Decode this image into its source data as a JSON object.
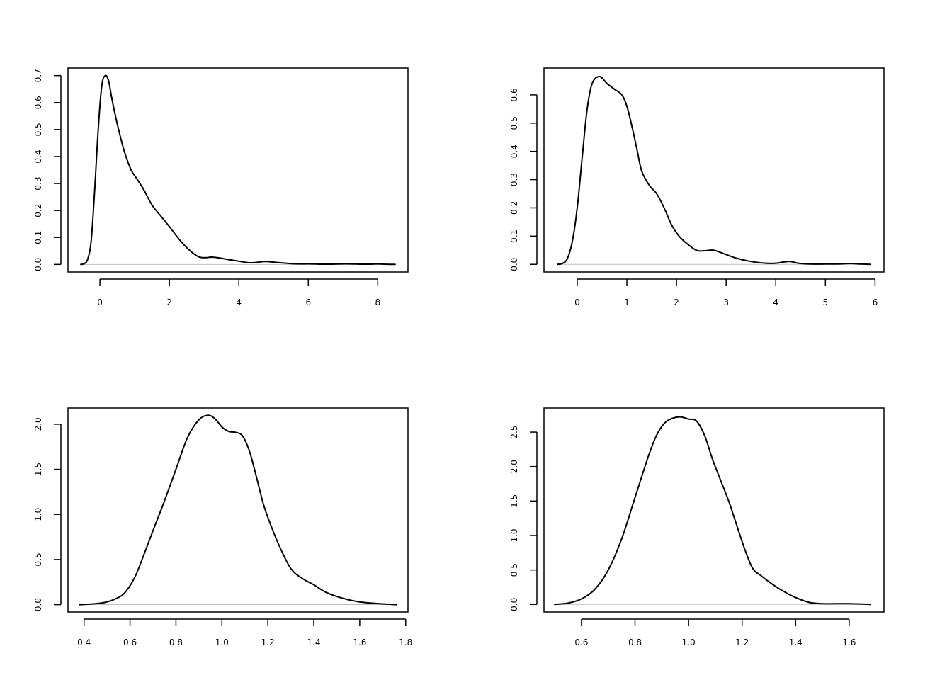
{
  "chart_data": [
    {
      "type": "line",
      "title": "",
      "xlabel": "",
      "ylabel": "",
      "xlim": [
        -0.92,
        8.87
      ],
      "ylim": [
        -0.028,
        0.728
      ],
      "xticks": [
        0,
        2,
        4,
        6,
        8
      ],
      "yticks": [
        0.0,
        0.1,
        0.2,
        0.3,
        0.4,
        0.5,
        0.6,
        0.7
      ],
      "xtick_labels": [
        "0",
        "2",
        "4",
        "6",
        "8"
      ],
      "ytick_labels": [
        "0.0",
        "0.1",
        "0.2",
        "0.3",
        "0.4",
        "0.5",
        "0.6",
        "0.7"
      ],
      "baseline": 0,
      "grid": false,
      "legend": "none",
      "series": [
        {
          "x": [
            -0.55,
            -0.45,
            -0.35,
            -0.25,
            -0.15,
            -0.05,
            0.05,
            0.15,
            0.25,
            0.35,
            0.5,
            0.7,
            0.9,
            1.05,
            1.25,
            1.5,
            1.75,
            2.0,
            2.3,
            2.6,
            2.85,
            3.05,
            3.2,
            3.45,
            3.7,
            4.0,
            4.3,
            4.55,
            4.75,
            4.95,
            5.2,
            5.5,
            5.8,
            6.1,
            6.4,
            6.7,
            6.95,
            7.2,
            7.5,
            7.8,
            8.0,
            8.2,
            8.5
          ],
          "y": [
            0.0,
            0.003,
            0.02,
            0.09,
            0.28,
            0.5,
            0.66,
            0.7,
            0.68,
            0.61,
            0.52,
            0.42,
            0.35,
            0.32,
            0.28,
            0.22,
            0.18,
            0.14,
            0.09,
            0.05,
            0.028,
            0.025,
            0.027,
            0.024,
            0.018,
            0.012,
            0.006,
            0.008,
            0.011,
            0.009,
            0.006,
            0.003,
            0.002,
            0.002,
            0.001,
            0.001,
            0.002,
            0.002,
            0.001,
            0.001,
            0.002,
            0.001,
            0.0
          ]
        }
      ]
    },
    {
      "type": "line",
      "title": "",
      "xlabel": "",
      "ylabel": "",
      "xlim": [
        -0.67,
        6.18
      ],
      "ylim": [
        -0.027,
        0.695
      ],
      "xticks": [
        0,
        1,
        2,
        3,
        4,
        5,
        6
      ],
      "yticks": [
        0.0,
        0.1,
        0.2,
        0.3,
        0.4,
        0.5,
        0.6
      ],
      "xtick_labels": [
        "0",
        "1",
        "2",
        "3",
        "4",
        "5",
        "6"
      ],
      "ytick_labels": [
        "0.0",
        "0.1",
        "0.2",
        "0.3",
        "0.4",
        "0.5",
        "0.6"
      ],
      "baseline": 0,
      "grid": false,
      "legend": "none",
      "series": [
        {
          "x": [
            -0.4,
            -0.3,
            -0.2,
            -0.1,
            0.0,
            0.1,
            0.2,
            0.3,
            0.45,
            0.6,
            0.75,
            0.9,
            1.0,
            1.1,
            1.2,
            1.3,
            1.45,
            1.6,
            1.75,
            1.9,
            2.05,
            2.2,
            2.4,
            2.55,
            2.75,
            2.95,
            3.2,
            3.5,
            3.8,
            4.0,
            4.15,
            4.3,
            4.45,
            4.7,
            5.0,
            5.3,
            5.5,
            5.7,
            5.9
          ],
          "y": [
            0.0,
            0.003,
            0.02,
            0.08,
            0.2,
            0.38,
            0.55,
            0.64,
            0.665,
            0.64,
            0.62,
            0.6,
            0.56,
            0.49,
            0.41,
            0.33,
            0.28,
            0.25,
            0.2,
            0.14,
            0.1,
            0.075,
            0.05,
            0.048,
            0.05,
            0.038,
            0.022,
            0.01,
            0.004,
            0.004,
            0.008,
            0.01,
            0.004,
            0.001,
            0.001,
            0.0015,
            0.003,
            0.001,
            0.0
          ]
        }
      ]
    },
    {
      "type": "line",
      "title": "",
      "xlabel": "",
      "ylabel": "",
      "xlim": [
        0.33,
        1.81
      ],
      "ylim": [
        -0.082,
        2.18
      ],
      "xticks": [
        0.4,
        0.6,
        0.8,
        1.0,
        1.2,
        1.4,
        1.6,
        1.8
      ],
      "yticks": [
        0.0,
        0.5,
        1.0,
        1.5,
        2.0
      ],
      "xtick_labels": [
        "0.4",
        "0.6",
        "0.8",
        "1.0",
        "1.2",
        "1.4",
        "1.6",
        "1.8"
      ],
      "ytick_labels": [
        "0.0",
        "0.5",
        "1.0",
        "1.5",
        "2.0"
      ],
      "baseline": 0,
      "grid": false,
      "legend": "none",
      "series": [
        {
          "x": [
            0.38,
            0.45,
            0.5,
            0.55,
            0.58,
            0.62,
            0.66,
            0.7,
            0.75,
            0.8,
            0.85,
            0.9,
            0.94,
            0.97,
            1.0,
            1.03,
            1.06,
            1.09,
            1.12,
            1.15,
            1.18,
            1.21,
            1.25,
            1.3,
            1.35,
            1.4,
            1.45,
            1.5,
            1.55,
            1.6,
            1.66,
            1.72,
            1.76
          ],
          "y": [
            0.0,
            0.01,
            0.03,
            0.08,
            0.14,
            0.3,
            0.55,
            0.82,
            1.15,
            1.5,
            1.85,
            2.05,
            2.1,
            2.06,
            1.97,
            1.92,
            1.91,
            1.87,
            1.7,
            1.42,
            1.12,
            0.9,
            0.65,
            0.4,
            0.29,
            0.22,
            0.14,
            0.09,
            0.055,
            0.03,
            0.015,
            0.005,
            0.0
          ]
        }
      ]
    },
    {
      "type": "line",
      "title": "",
      "xlabel": "",
      "ylabel": "",
      "xlim": [
        0.46,
        1.73
      ],
      "ylim": [
        -0.11,
        2.85
      ],
      "xticks": [
        0.6,
        0.8,
        1.0,
        1.2,
        1.4,
        1.6
      ],
      "yticks": [
        0.0,
        0.5,
        1.0,
        1.5,
        2.0,
        2.5
      ],
      "xtick_labels": [
        "0.6",
        "0.8",
        "1.0",
        "1.2",
        "1.4",
        "1.6"
      ],
      "ytick_labels": [
        "0.0",
        "0.5",
        "1.0",
        "1.5",
        "2.0",
        "2.5"
      ],
      "baseline": 0,
      "grid": false,
      "legend": "none",
      "series": [
        {
          "x": [
            0.5,
            0.55,
            0.6,
            0.65,
            0.7,
            0.75,
            0.8,
            0.85,
            0.88,
            0.91,
            0.94,
            0.97,
            1.0,
            1.03,
            1.06,
            1.09,
            1.12,
            1.15,
            1.18,
            1.21,
            1.24,
            1.27,
            1.3,
            1.35,
            1.4,
            1.45,
            1.5,
            1.55,
            1.6,
            1.65,
            1.68
          ],
          "y": [
            0.0,
            0.02,
            0.08,
            0.22,
            0.5,
            0.95,
            1.55,
            2.15,
            2.45,
            2.63,
            2.7,
            2.72,
            2.69,
            2.66,
            2.45,
            2.1,
            1.8,
            1.5,
            1.15,
            0.8,
            0.52,
            0.42,
            0.33,
            0.2,
            0.1,
            0.03,
            0.01,
            0.01,
            0.01,
            0.005,
            0.0
          ]
        }
      ]
    }
  ]
}
